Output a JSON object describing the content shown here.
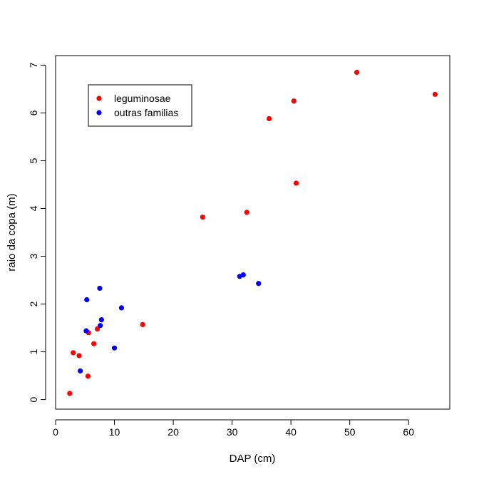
{
  "chart_data": {
    "type": "scatter",
    "xlabel": "DAP (cm)",
    "ylabel": "raio da copa (m)",
    "xlim": [
      0,
      67
    ],
    "ylim": [
      -0.2,
      7.2
    ],
    "x_ticks": [
      0,
      10,
      20,
      30,
      40,
      50,
      60
    ],
    "y_ticks": [
      0,
      1,
      2,
      3,
      4,
      5,
      6,
      7
    ],
    "grid": false,
    "legend_position": "top-left",
    "series": [
      {
        "name": "leguminosae",
        "color": "#ff0000",
        "points": [
          {
            "x": 2.4,
            "y": 0.13
          },
          {
            "x": 3.0,
            "y": 0.98
          },
          {
            "x": 4.0,
            "y": 0.92
          },
          {
            "x": 5.5,
            "y": 0.49
          },
          {
            "x": 5.6,
            "y": 1.4
          },
          {
            "x": 6.5,
            "y": 1.17
          },
          {
            "x": 7.1,
            "y": 1.48
          },
          {
            "x": 14.8,
            "y": 1.57
          },
          {
            "x": 25.0,
            "y": 3.82
          },
          {
            "x": 32.5,
            "y": 3.92
          },
          {
            "x": 36.3,
            "y": 5.88
          },
          {
            "x": 40.5,
            "y": 6.25
          },
          {
            "x": 40.9,
            "y": 4.53
          },
          {
            "x": 51.2,
            "y": 6.85
          },
          {
            "x": 64.5,
            "y": 6.39
          }
        ]
      },
      {
        "name": "outras familias",
        "color": "#0000ff",
        "points": [
          {
            "x": 4.2,
            "y": 0.6
          },
          {
            "x": 5.2,
            "y": 1.44
          },
          {
            "x": 5.3,
            "y": 2.09
          },
          {
            "x": 7.5,
            "y": 2.33
          },
          {
            "x": 7.6,
            "y": 1.55
          },
          {
            "x": 7.8,
            "y": 1.67
          },
          {
            "x": 10.0,
            "y": 1.08
          },
          {
            "x": 11.2,
            "y": 1.92
          },
          {
            "x": 31.3,
            "y": 2.58
          },
          {
            "x": 31.9,
            "y": 2.61
          },
          {
            "x": 34.5,
            "y": 2.43
          }
        ]
      }
    ]
  }
}
